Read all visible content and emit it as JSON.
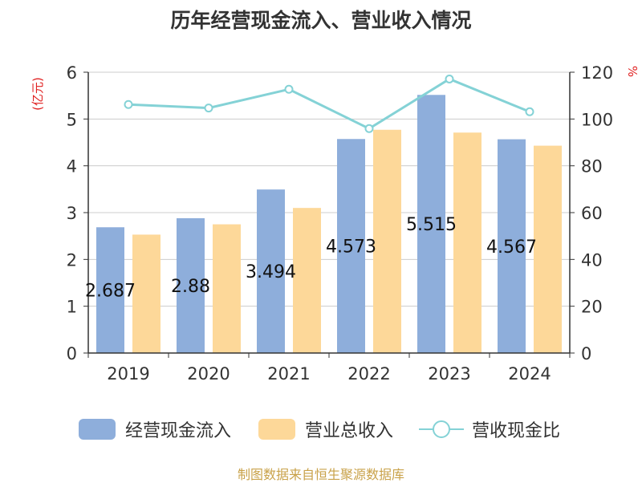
{
  "title": "历年经营现金流入、营业收入情况",
  "unit_left": "(亿元)",
  "unit_right": "%",
  "footer": "制图数据来自恒生聚源数据库",
  "colors": {
    "cash_inflow": "#8eaedb",
    "revenue": "#fdd899",
    "ratio": "#84d2d6",
    "axis_text": "#333333",
    "grid": "#cccccc",
    "unit_text": "#e02020",
    "footer": "#c9a24a"
  },
  "legend": [
    {
      "label": "经营现金流入",
      "kind": "bar",
      "color": "#8eaedb"
    },
    {
      "label": "营业总收入",
      "kind": "bar",
      "color": "#fdd899"
    },
    {
      "label": "营收现金比",
      "kind": "line",
      "color": "#84d2d6"
    }
  ],
  "chart_data": {
    "type": "bar",
    "title": "历年经营现金流入、营业收入情况",
    "categories": [
      "2019",
      "2020",
      "2021",
      "2022",
      "2023",
      "2024"
    ],
    "series": [
      {
        "name": "经营现金流入",
        "type": "bar",
        "axis": "left",
        "values": [
          2.687,
          2.88,
          3.494,
          4.573,
          5.515,
          4.567
        ]
      },
      {
        "name": "营业总收入",
        "type": "bar",
        "axis": "left",
        "values": [
          2.53,
          2.75,
          3.1,
          4.77,
          4.71,
          4.43
        ]
      },
      {
        "name": "营收现金比",
        "type": "line",
        "axis": "right",
        "values": [
          106.2,
          104.7,
          112.7,
          95.9,
          117.1,
          103.1
        ]
      }
    ],
    "data_labels": [
      "2.687",
      "2.88",
      "3.494",
      "4.573",
      "5.515",
      "4.567"
    ],
    "y_left": {
      "label": "(亿元)",
      "min": 0,
      "max": 6,
      "ticks": [
        "0",
        "1",
        "2",
        "3",
        "4",
        "5",
        "6"
      ]
    },
    "y_right": {
      "label": "%",
      "min": 0,
      "max": 120,
      "ticks": [
        "0",
        "20",
        "40",
        "60",
        "80",
        "100",
        "120"
      ]
    },
    "grid": true,
    "legend_position": "bottom"
  }
}
